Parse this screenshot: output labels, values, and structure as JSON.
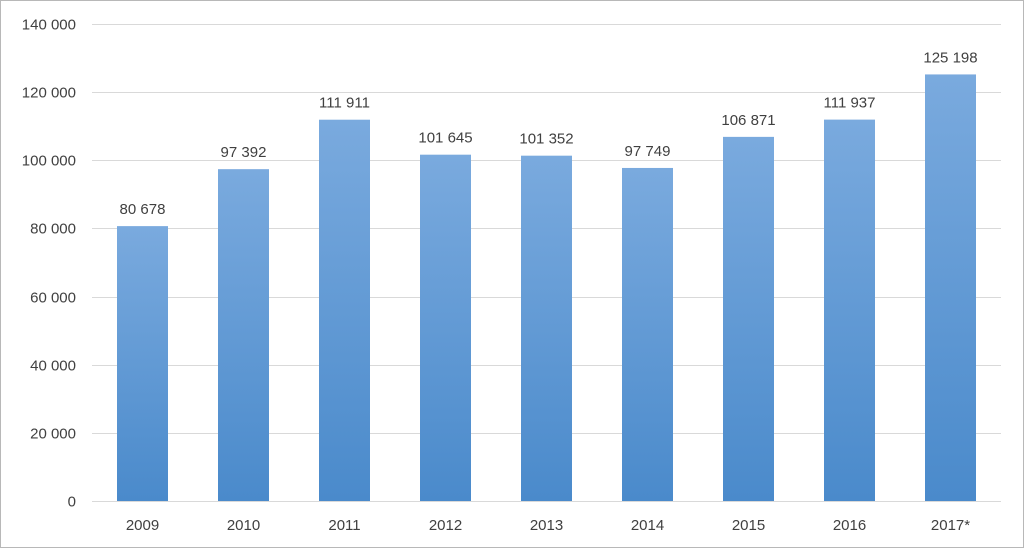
{
  "chart_data": {
    "type": "bar",
    "categories": [
      "2009",
      "2010",
      "2011",
      "2012",
      "2013",
      "2014",
      "2015",
      "2016",
      "2017*"
    ],
    "values": [
      80678,
      97392,
      111911,
      101645,
      101352,
      97749,
      106871,
      111937,
      125198
    ],
    "data_labels": [
      "80 678",
      "97 392",
      "111 911",
      "101 645",
      "101 352",
      "97 749",
      "106 871",
      "111 937",
      "125 198"
    ],
    "ylim": [
      0,
      140000
    ],
    "y_ticks": [
      0,
      20000,
      40000,
      60000,
      80000,
      100000,
      120000,
      140000
    ],
    "y_tick_labels": [
      "0",
      "20 000",
      "40 000",
      "60 000",
      "80 000",
      "100 000",
      "120 000",
      "140 000"
    ],
    "grid": true,
    "legend": "none",
    "title": "",
    "xlabel": "",
    "ylabel": "",
    "colors": {
      "bar_top": "#7aaade",
      "bar_bottom": "#4a8acb",
      "grid": "#d9d9d9",
      "text": "#404040"
    }
  }
}
